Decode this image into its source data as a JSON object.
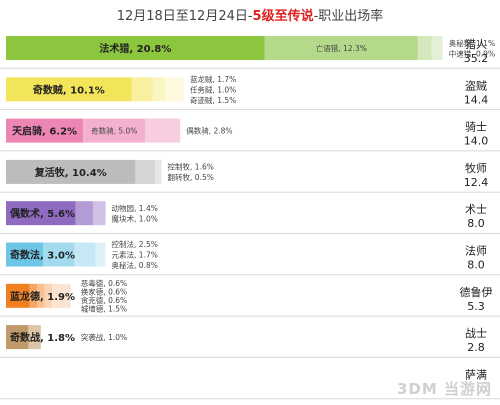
{
  "title": {
    "prefix": "12月18日至12月24日-",
    "highlight": "5级至传说",
    "suffix": "-职业出场率"
  },
  "watermark": "3DM 当游网",
  "chart_data": {
    "type": "bar",
    "xlim": [
      0,
      35.2
    ],
    "classes": [
      {
        "name": "猎人",
        "value": "35.2",
        "total": 35.2,
        "segments": [
          {
            "label": "法术猎, 20.8%",
            "value": 20.8,
            "color": "#8cc63f",
            "bold": true
          },
          {
            "label": "亡语猎, 12.3%",
            "value": 12.3,
            "color": "#b5d98a"
          },
          {
            "label": "奥秘猎, 1.1%",
            "value": 1.1,
            "color": "#d3e8bc"
          },
          {
            "label": "中速猎, 0.9%",
            "value": 0.9,
            "color": "#e4f0d6"
          }
        ]
      },
      {
        "name": "盗贼",
        "value": "14.4",
        "total": 14.4,
        "segments": [
          {
            "label": "奇数贼, 10.1%",
            "value": 10.1,
            "color": "#f3e55a",
            "bold": true
          },
          {
            "label": "蓝龙贼, 1.7%",
            "value": 1.7,
            "color": "#f8ef9f"
          },
          {
            "label": "任务贼, 1.0%",
            "value": 1.0,
            "color": "#fbf4c4"
          },
          {
            "label": "奇迹贼, 1.5%",
            "value": 1.5,
            "color": "#fdf9dd"
          }
        ]
      },
      {
        "name": "骑士",
        "value": "14.0",
        "total": 14.0,
        "segments": [
          {
            "label": "天启骑, 6.2%",
            "value": 6.2,
            "color": "#ee86b5",
            "bold": true
          },
          {
            "label": "奇数骑, 5.0%",
            "value": 5.0,
            "color": "#f4b1cf"
          },
          {
            "label": "偶数骑, 2.8%",
            "value": 2.8,
            "color": "#f8cde0"
          }
        ]
      },
      {
        "name": "牧师",
        "value": "12.4",
        "total": 12.4,
        "segments": [
          {
            "label": "复活牧, 10.4%",
            "value": 10.4,
            "color": "#bcbcbc",
            "bold": true
          },
          {
            "label": "控制牧, 1.6%",
            "value": 1.6,
            "color": "#d6d6d6"
          },
          {
            "label": "翻转牧, 0.5%",
            "value": 0.5,
            "color": "#e6e6e6"
          }
        ]
      },
      {
        "name": "术士",
        "value": "8.0",
        "total": 8.0,
        "segments": [
          {
            "label": "偶数术, 5.6%",
            "value": 5.6,
            "color": "#8e6bc0",
            "bold": true
          },
          {
            "label": "动物园, 1.4%",
            "value": 1.4,
            "color": "#b39bd6"
          },
          {
            "label": "魔块术, 1.0%",
            "value": 1.0,
            "color": "#cfc0e6"
          }
        ]
      },
      {
        "name": "法师",
        "value": "8.0",
        "total": 8.0,
        "segments": [
          {
            "label": "奇数法, 3.0%",
            "value": 3.0,
            "color": "#6ec6e6",
            "bold": true
          },
          {
            "label": "控制法, 2.5%",
            "value": 2.5,
            "color": "#a3daee"
          },
          {
            "label": "元素法, 1.7%",
            "value": 1.7,
            "color": "#c5e8f4"
          },
          {
            "label": "奥秘法, 0.8%",
            "value": 0.8,
            "color": "#dcf1f8"
          }
        ]
      },
      {
        "name": "德鲁伊",
        "value": "5.3",
        "total": 5.3,
        "segments": [
          {
            "label": "蓝龙德, 1.9%",
            "value": 1.9,
            "color": "#f07f1f",
            "bold": true
          },
          {
            "label": "恶毒德, 0.6%",
            "value": 0.6,
            "color": "#f5a662"
          },
          {
            "label": "换家德, 0.6%",
            "value": 0.6,
            "color": "#f8c08f"
          },
          {
            "label": "贪克德, 0.6%",
            "value": 0.6,
            "color": "#fad4b3"
          },
          {
            "label": "城墙德, 1.5%",
            "value": 1.5,
            "color": "#fce4d0"
          }
        ]
      },
      {
        "name": "战士",
        "value": "2.8",
        "total": 2.8,
        "segments": [
          {
            "label": "奇数战, 1.8%",
            "value": 1.8,
            "color": "#c19a6b",
            "bold": true
          },
          {
            "label": "突袭战, 1.0%",
            "value": 1.0,
            "color": "#dcc5a8"
          }
        ]
      },
      {
        "name": "萨满",
        "value": "",
        "total": 0,
        "segments": []
      }
    ]
  }
}
